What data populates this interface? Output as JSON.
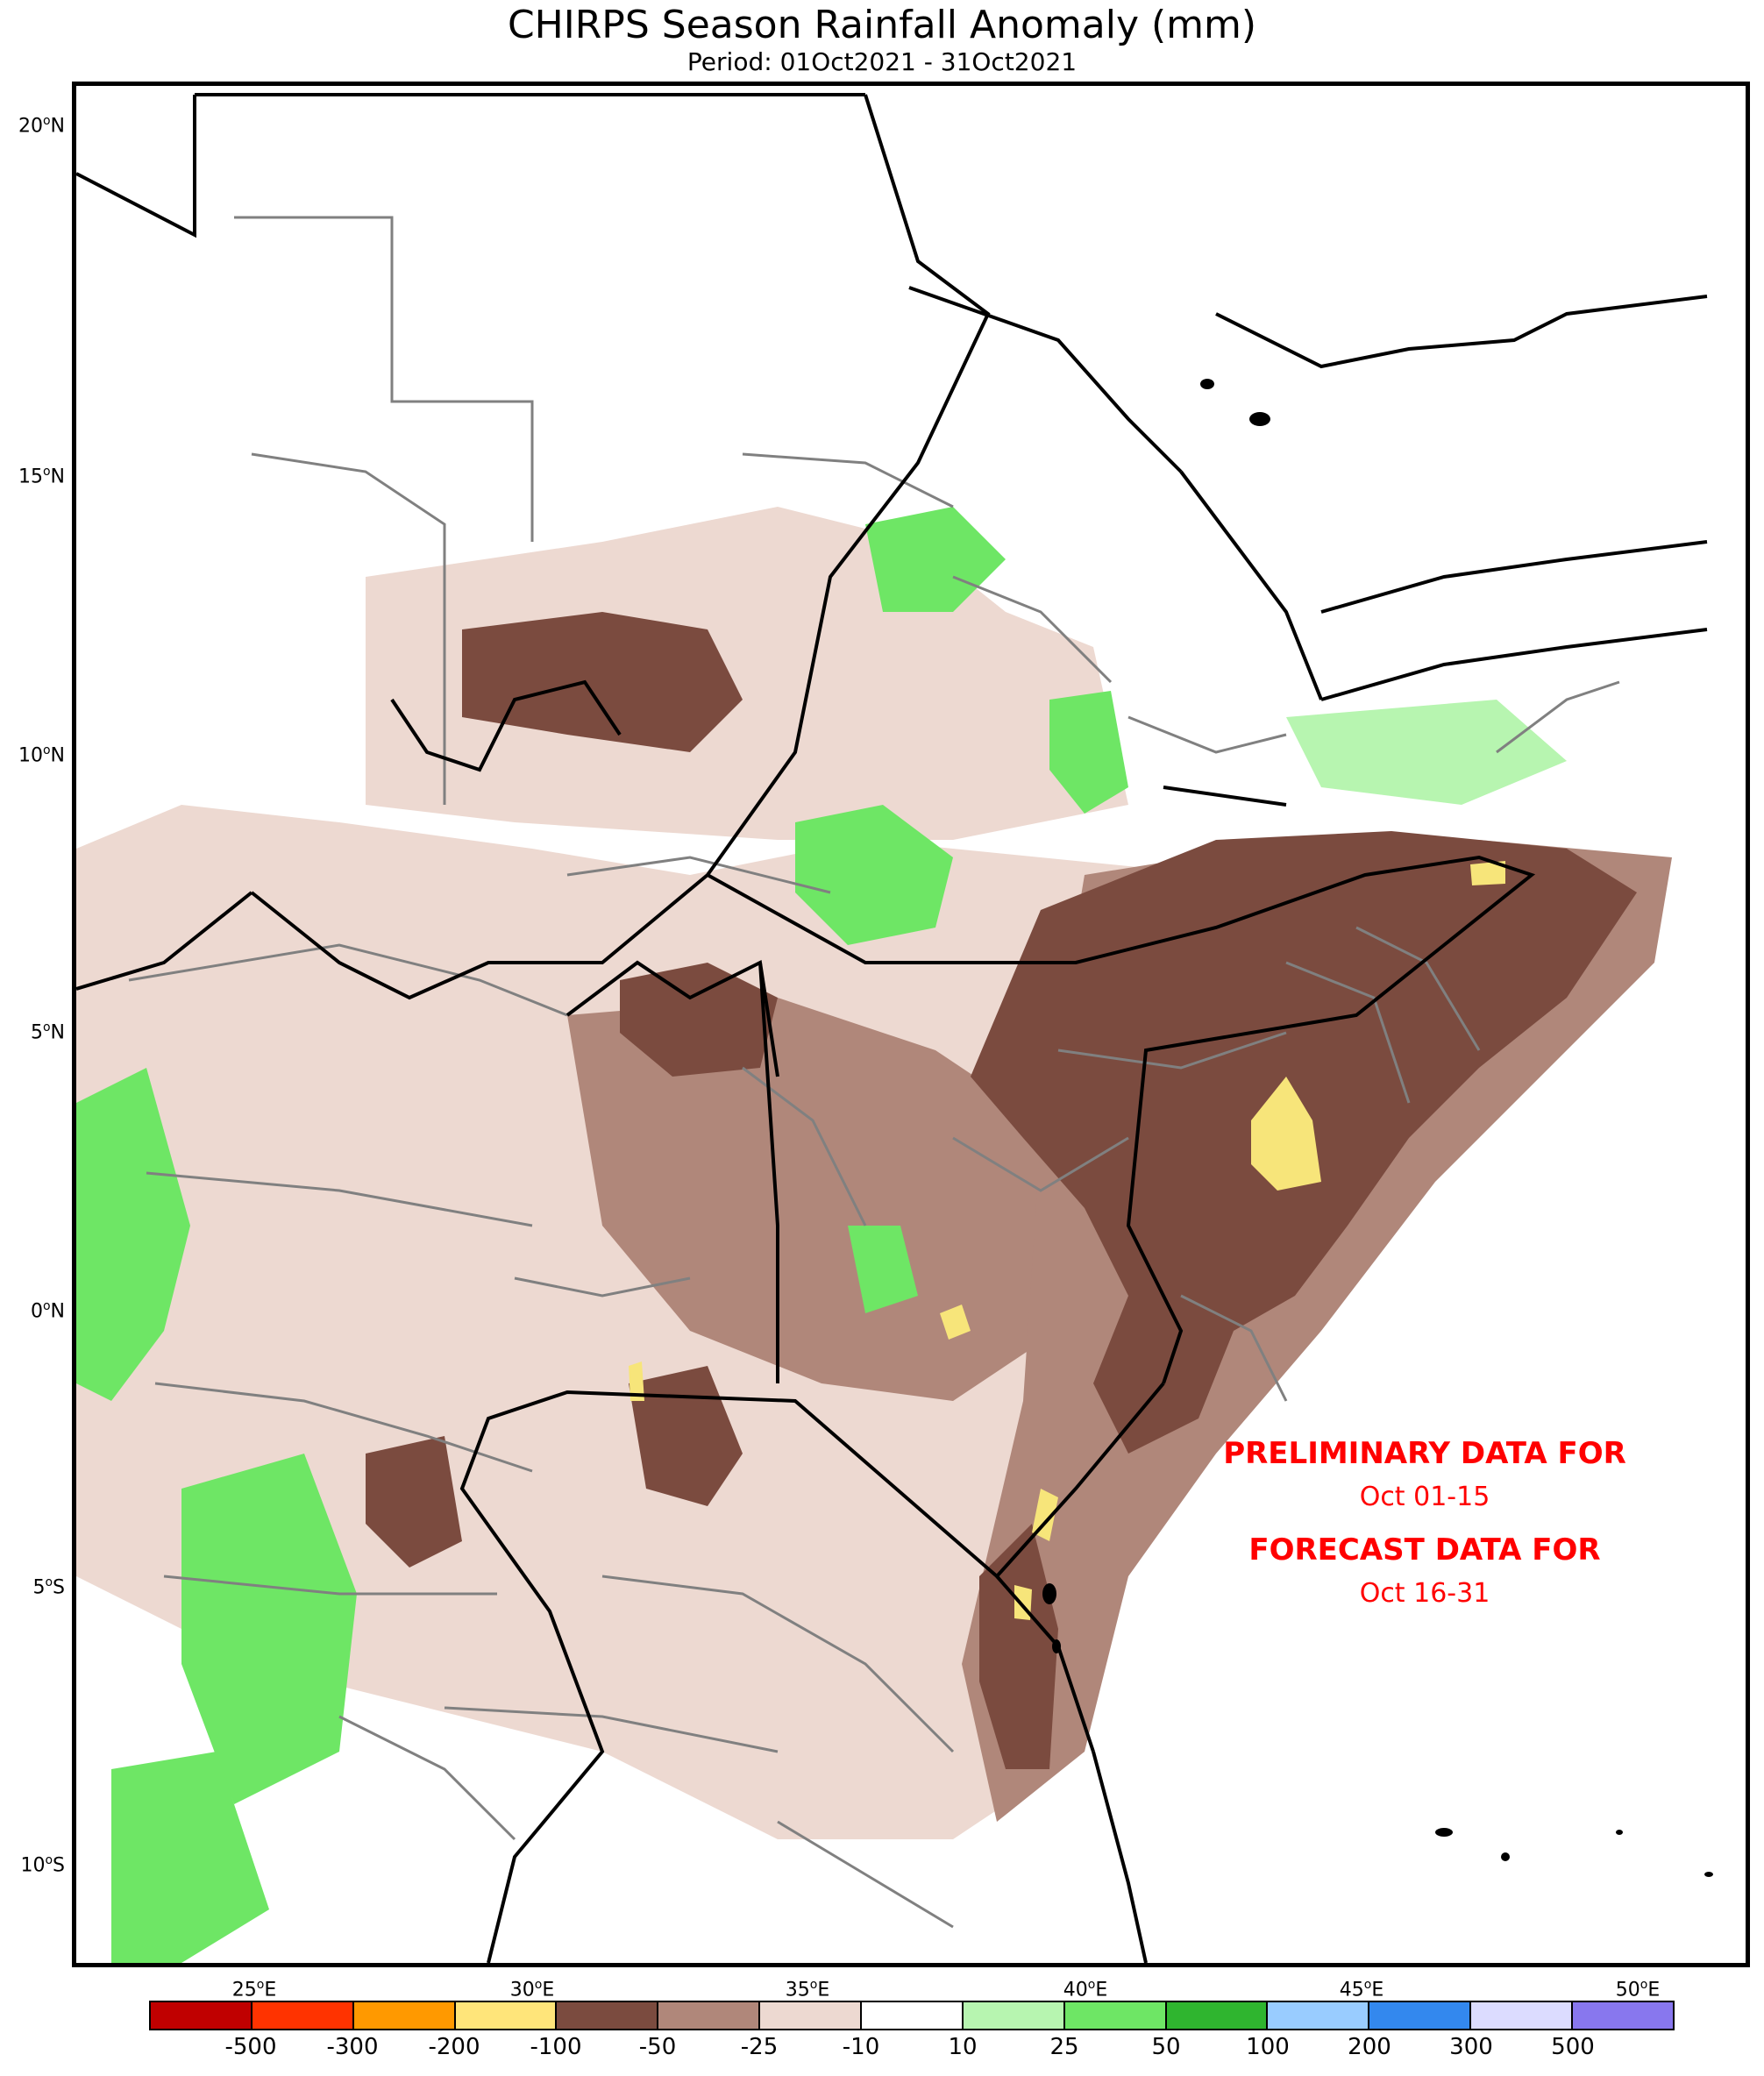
{
  "title": "CHIRPS Season Rainfall Anomaly (mm)",
  "subtitle": "Period: 01Oct2021 - 31Oct2021",
  "map": {
    "lon_range": [
      22,
      52
    ],
    "lat_range": [
      -12,
      22
    ],
    "lat_ticks": [
      {
        "deg": "20",
        "hemi": "N"
      },
      {
        "deg": "15",
        "hemi": "N"
      },
      {
        "deg": "10",
        "hemi": "N"
      },
      {
        "deg": "5",
        "hemi": "N"
      },
      {
        "deg": "0",
        "hemi": "N"
      },
      {
        "deg": "5",
        "hemi": "S"
      },
      {
        "deg": "10",
        "hemi": "S"
      }
    ],
    "lon_ticks": [
      {
        "deg": "25",
        "hemi": "E"
      },
      {
        "deg": "30",
        "hemi": "E"
      },
      {
        "deg": "35",
        "hemi": "E"
      },
      {
        "deg": "40",
        "hemi": "E"
      },
      {
        "deg": "45",
        "hemi": "E"
      },
      {
        "deg": "50",
        "hemi": "E"
      }
    ],
    "colors": {
      "strong_deficit": "#7b4b3f",
      "moderate_deficit": "#b0877a",
      "mild_deficit": "#edd9d1",
      "mild_surplus": "#b7f5b0",
      "moderate_surplus": "#6ee665",
      "strong_surplus": "#2fb52f",
      "extreme_deficit_yellow": "#f7e57a"
    }
  },
  "notes": {
    "line1": "PRELIMINARY DATA FOR",
    "line2": "Oct 01-15",
    "line3": "FORECAST DATA FOR",
    "line4": "Oct 16-31"
  },
  "legend": {
    "colors": [
      "#c00000",
      "#ff3300",
      "#ff9900",
      "#ffe57a",
      "#7b4b3f",
      "#b0877a",
      "#edd9d1",
      "#ffffff",
      "#b7f5b0",
      "#6ee665",
      "#2fb52f",
      "#99ccff",
      "#3388ee",
      "#dcdcff",
      "#8877ee"
    ],
    "labels": [
      "-500",
      "-300",
      "-200",
      "-100",
      "-50",
      "-25",
      "-10",
      "10",
      "25",
      "50",
      "100",
      "200",
      "300",
      "500"
    ]
  }
}
